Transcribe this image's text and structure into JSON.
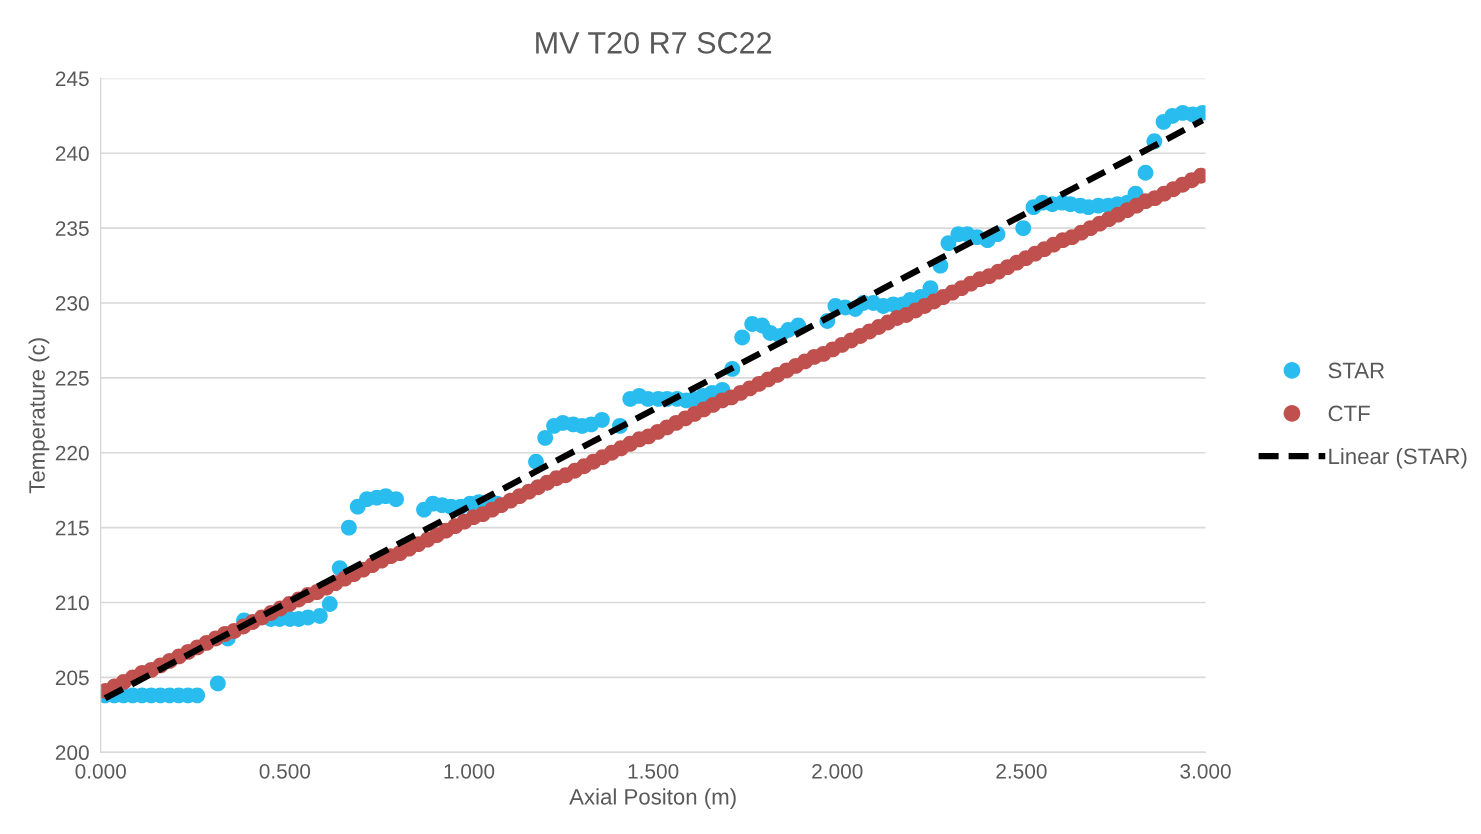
{
  "chart_data": {
    "type": "scatter",
    "title": "MV T20 R7 SC22",
    "xlabel": "Axial Positon (m)",
    "ylabel": "Temperature (c)",
    "xlim": [
      0,
      3
    ],
    "ylim": [
      200,
      245
    ],
    "xticks": [
      {
        "value": 0,
        "label": "0.000"
      },
      {
        "value": 0.5,
        "label": "0.500"
      },
      {
        "value": 1,
        "label": "1.000"
      },
      {
        "value": 1.5,
        "label": "1.500"
      },
      {
        "value": 2,
        "label": "2.000"
      },
      {
        "value": 2.5,
        "label": "2.500"
      },
      {
        "value": 3,
        "label": "3.000"
      }
    ],
    "yticks": [
      200,
      205,
      210,
      215,
      220,
      225,
      230,
      235,
      240,
      245
    ],
    "grid": "y",
    "legend": "right",
    "marker": "circle",
    "series": [
      {
        "name": "STAR",
        "color": "#29bdef",
        "x": [
          0.012,
          0.037,
          0.062,
          0.087,
          0.112,
          0.137,
          0.162,
          0.187,
          0.212,
          0.237,
          0.262,
          0.318,
          0.345,
          0.372,
          0.389,
          0.413,
          0.438,
          0.462,
          0.486,
          0.514,
          0.538,
          0.563,
          0.595,
          0.622,
          0.649,
          0.674,
          0.698,
          0.723,
          0.75,
          0.774,
          0.802,
          0.878,
          0.902,
          0.927,
          0.951,
          0.978,
          1.003,
          1.027,
          1.052,
          1.076,
          1.103,
          1.128,
          1.158,
          1.182,
          1.207,
          1.231,
          1.255,
          1.283,
          1.307,
          1.332,
          1.361,
          1.41,
          1.438,
          1.462,
          1.486,
          1.514,
          1.538,
          1.565,
          1.59,
          1.611,
          1.636,
          1.66,
          1.688,
          1.715,
          1.742,
          1.769,
          1.796,
          1.818,
          1.845,
          1.867,
          1.894,
          1.973,
          1.995,
          2.022,
          2.049,
          2.071,
          2.098,
          2.125,
          2.152,
          2.177,
          2.198,
          2.226,
          2.253,
          2.28,
          2.302,
          2.329,
          2.353,
          2.38,
          2.408,
          2.435,
          2.505,
          2.533,
          2.557,
          2.584,
          2.611,
          2.633,
          2.66,
          2.682,
          2.709,
          2.736,
          2.761,
          2.788,
          2.81,
          2.837,
          2.861,
          2.886,
          2.91,
          2.938,
          2.965,
          2.992
        ],
        "values": [
          203.8,
          203.8,
          203.8,
          203.8,
          203.8,
          203.8,
          203.8,
          203.8,
          203.8,
          203.8,
          203.8,
          204.6,
          207.6,
          null,
          208.8,
          null,
          null,
          208.9,
          208.9,
          208.9,
          208.9,
          209.0,
          209.1,
          209.9,
          212.3,
          215.0,
          216.4,
          216.9,
          217.0,
          217.1,
          216.9,
          216.2,
          216.6,
          216.5,
          216.4,
          216.4,
          216.6,
          216.7,
          216.7,
          216.6,
          null,
          null,
          null,
          219.4,
          221.0,
          221.8,
          222.0,
          221.9,
          221.8,
          221.9,
          222.2,
          221.8,
          223.6,
          223.8,
          223.6,
          223.6,
          223.6,
          223.6,
          223.5,
          223.6,
          223.8,
          224.0,
          224.2,
          225.6,
          227.7,
          228.6,
          228.5,
          228.0,
          227.8,
          228.2,
          228.5,
          228.8,
          229.8,
          229.7,
          229.6,
          230.0,
          230.0,
          229.8,
          229.9,
          229.9,
          230.2,
          230.4,
          231.0,
          232.5,
          234.0,
          234.6,
          234.6,
          234.4,
          234.2,
          234.6,
          235.0,
          236.4,
          236.7,
          236.6,
          236.7,
          236.6,
          236.5,
          236.4,
          236.5,
          236.5,
          236.6,
          236.7,
          237.3,
          238.7,
          240.8,
          242.1,
          242.5,
          242.7,
          242.6,
          242.7
        ]
      },
      {
        "name": "CTF",
        "color": "#c0504d",
        "x": [
          0.0125,
          0.0375,
          0.0625,
          0.0875,
          0.1125,
          0.1375,
          0.1625,
          0.1875,
          0.2125,
          0.2375,
          0.2625,
          0.2875,
          0.3125,
          0.3375,
          0.3625,
          0.3875,
          0.4125,
          0.4375,
          0.4625,
          0.4875,
          0.5125,
          0.5375,
          0.5625,
          0.5875,
          0.6125,
          0.6375,
          0.6625,
          0.6875,
          0.7125,
          0.7375,
          0.7625,
          0.7875,
          0.8125,
          0.8375,
          0.8625,
          0.8875,
          0.9125,
          0.9375,
          0.9625,
          0.9875,
          1.0125,
          1.0375,
          1.0625,
          1.0875,
          1.1125,
          1.1375,
          1.1625,
          1.1875,
          1.2125,
          1.2375,
          1.2625,
          1.2875,
          1.3125,
          1.3375,
          1.3625,
          1.3875,
          1.4125,
          1.4375,
          1.4625,
          1.4875,
          1.5125,
          1.5375,
          1.5625,
          1.5875,
          1.6125,
          1.6375,
          1.6625,
          1.6875,
          1.7125,
          1.7375,
          1.7625,
          1.7875,
          1.8125,
          1.8375,
          1.8625,
          1.8875,
          1.9125,
          1.9375,
          1.9625,
          1.9875,
          2.0125,
          2.0375,
          2.0625,
          2.0875,
          2.1125,
          2.1375,
          2.1625,
          2.1875,
          2.2125,
          2.2375,
          2.2625,
          2.2875,
          2.3125,
          2.3375,
          2.3625,
          2.3875,
          2.4125,
          2.4375,
          2.4625,
          2.4875,
          2.5125,
          2.5375,
          2.5625,
          2.5875,
          2.6125,
          2.6375,
          2.6625,
          2.6875,
          2.7125,
          2.7375,
          2.7625,
          2.7875,
          2.8125,
          2.8375,
          2.8625,
          2.8875,
          2.9125,
          2.9375,
          2.9625,
          2.9875
        ],
        "values": [
          204.1,
          204.4,
          204.7,
          205.0,
          205.3,
          205.5,
          205.8,
          206.1,
          206.4,
          206.7,
          207.0,
          207.3,
          207.6,
          207.9,
          208.1,
          208.4,
          208.7,
          209.0,
          209.3,
          209.6,
          209.9,
          210.2,
          210.5,
          210.7,
          211.0,
          211.3,
          211.6,
          211.9,
          212.2,
          212.5,
          212.8,
          213.1,
          213.3,
          213.6,
          213.9,
          214.2,
          214.5,
          214.8,
          215.1,
          215.4,
          215.7,
          215.9,
          216.2,
          216.5,
          216.8,
          217.1,
          217.4,
          217.7,
          218.0,
          218.3,
          218.5,
          218.8,
          219.1,
          219.4,
          219.7,
          220.0,
          220.3,
          220.6,
          220.9,
          221.1,
          221.4,
          221.7,
          222.0,
          222.3,
          222.6,
          222.9,
          223.2,
          223.5,
          223.7,
          224.0,
          224.3,
          224.6,
          224.9,
          225.2,
          225.5,
          225.8,
          226.1,
          226.4,
          226.6,
          226.9,
          227.2,
          227.5,
          227.8,
          228.1,
          228.4,
          228.7,
          229.0,
          229.2,
          229.5,
          229.8,
          230.1,
          230.4,
          230.7,
          231.0,
          231.3,
          231.6,
          231.8,
          232.1,
          232.4,
          232.7,
          233.0,
          233.3,
          233.6,
          233.9,
          234.2,
          234.4,
          234.7,
          235.0,
          235.3,
          235.6,
          235.9,
          236.2,
          236.5,
          236.8,
          237.0,
          237.3,
          237.6,
          237.9,
          238.2,
          238.5
        ]
      },
      {
        "name": "Linear (STAR)",
        "color": "#000000",
        "type": "line",
        "line_style": "dashed",
        "marker": "none",
        "x": [
          0.012,
          2.992
        ],
        "values": [
          203.6,
          242.2
        ]
      }
    ]
  }
}
